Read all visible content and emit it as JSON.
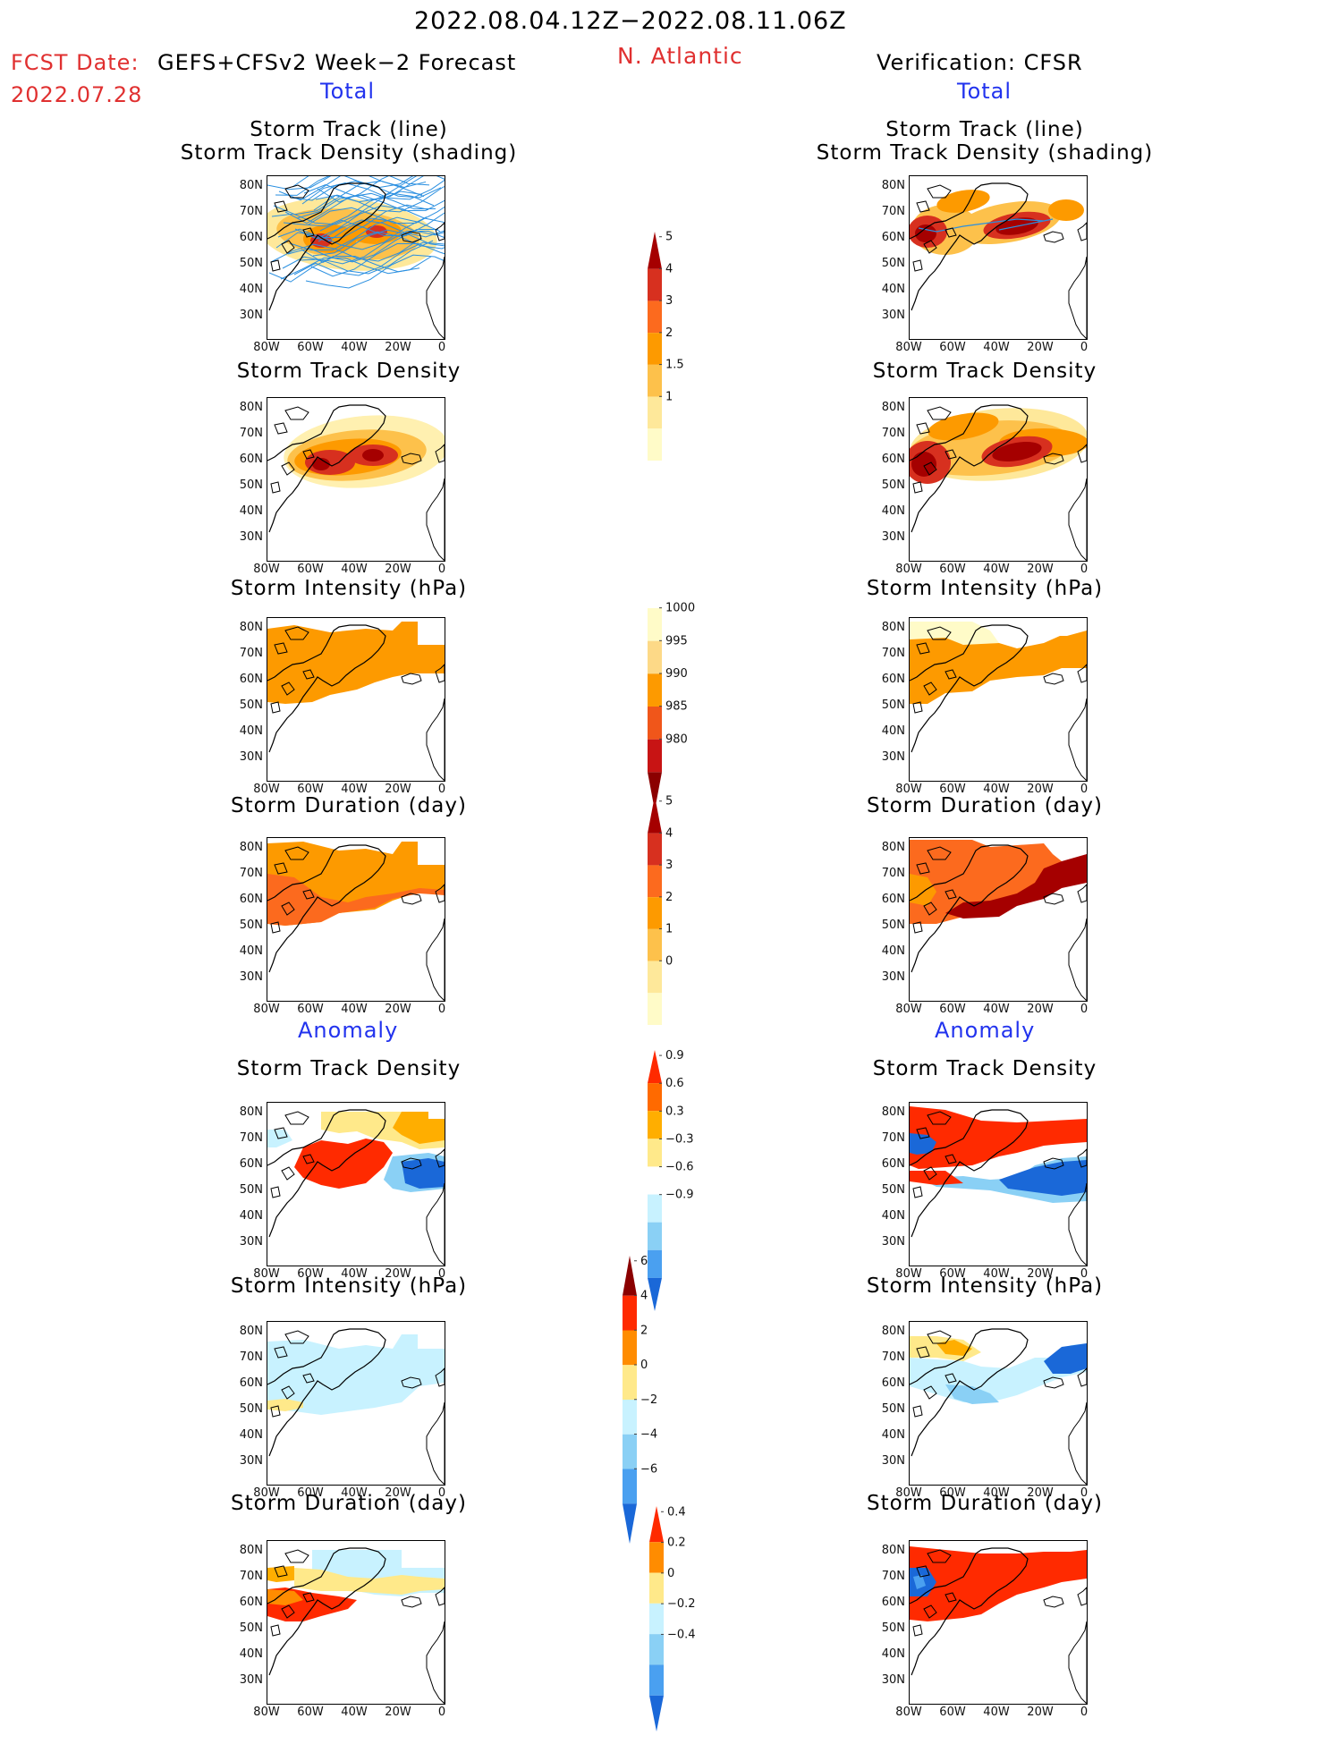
{
  "header": {
    "date_range": "2022.08.04.12Z−2022.08.11.06Z",
    "fcst_label": "FCST Date:",
    "fcst_model": "GEFS+CFSv2 Week−2 Forecast",
    "fcst_date": "2022.07.28",
    "region": "N. Atlantic",
    "verification": "Verification: CFSR",
    "left_total": "Total",
    "right_total": "Total",
    "left_anomaly": "Anomaly",
    "right_anomaly": "Anomaly"
  },
  "panel_titles": {
    "track_line": "Storm Track (line)",
    "track_density_shading": "Storm Track Density (shading)",
    "track_density": "Storm Track Density",
    "intensity": "Storm Intensity (hPa)",
    "duration": "Storm Duration (day)"
  },
  "axes": {
    "lat_ticks": [
      "80N",
      "70N",
      "60N",
      "50N",
      "40N",
      "30N"
    ],
    "lon_ticks": [
      "80W",
      "60W",
      "40W",
      "20W",
      "0"
    ]
  },
  "colorbars": {
    "density": {
      "labels": [
        "5",
        "4",
        "3",
        "2",
        "1.5",
        "1"
      ],
      "colors": [
        "#a50000",
        "#d7301f",
        "#fc6a1e",
        "#fd9a00",
        "#fdc14b",
        "#fee89a",
        "#fffbc8"
      ]
    },
    "intensity": {
      "labels": [
        "1000",
        "995",
        "990",
        "985",
        "980"
      ],
      "colors": [
        "#fffbc8",
        "#fdd987",
        "#fd9a00",
        "#f0561a",
        "#c81414",
        "#8b0000"
      ]
    },
    "duration": {
      "labels": [
        "5",
        "4",
        "3",
        "2",
        "1",
        "0"
      ],
      "colors": [
        "#a50000",
        "#d7301f",
        "#fc6a1e",
        "#fd9a00",
        "#fdc14b",
        "#fee89a",
        "#fffbc8"
      ]
    },
    "anom_density": {
      "labels": [
        "0.9",
        "0.6",
        "0.3",
        "−0.3",
        "−0.6",
        "−0.9"
      ],
      "colors": [
        "#ff2a00",
        "#ff6a00",
        "#ffae00",
        "#ffe98a",
        "#ffffff",
        "#c8f2ff",
        "#8ad0f5",
        "#4aa0f0",
        "#1a68d8"
      ]
    },
    "anom_intensity": {
      "labels": [
        "6",
        "4",
        "2",
        "0",
        "−2",
        "−4",
        "−6"
      ],
      "colors": [
        "#8b0000",
        "#ff2a00",
        "#ff8c00",
        "#ffe98a",
        "#c8f2ff",
        "#8ad0f5",
        "#4aa0f0",
        "#1a68d8"
      ]
    },
    "anom_duration": {
      "labels": [
        "0.4",
        "0.2",
        "0",
        "−0.2",
        "−0.4"
      ],
      "colors": [
        "#ff2a00",
        "#ff8c00",
        "#ffe98a",
        "#c8f2ff",
        "#8ad0f5",
        "#4aa0f0",
        "#1a68d8"
      ]
    }
  },
  "legend_colors": {
    "track_lines": "#2a8fe0",
    "title_red": "#e03030",
    "title_blue": "#2233ee"
  }
}
